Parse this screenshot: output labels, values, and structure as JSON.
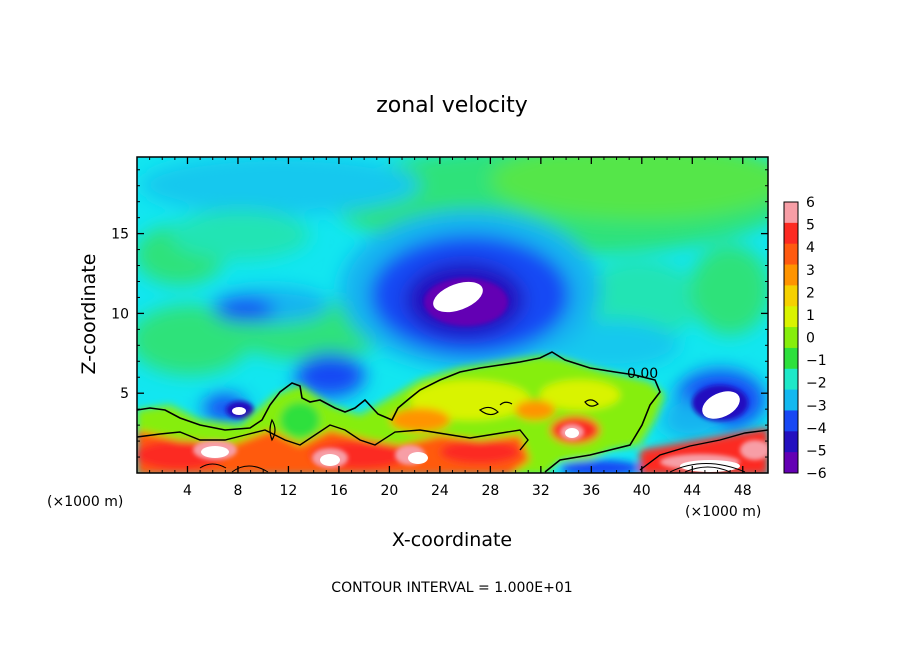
{
  "chart_data": {
    "type": "heatmap",
    "title": "zonal velocity",
    "xlabel": "X-coordinate",
    "ylabel": "Z-coordinate",
    "x_unit_label": "(×1000 m)",
    "x_unit_label_right": "(×1000 m)",
    "xlim": [
      0,
      50
    ],
    "ylim": [
      0,
      19.8
    ],
    "x_ticks": [
      4,
      8,
      12,
      16,
      20,
      24,
      28,
      32,
      36,
      40,
      44,
      48
    ],
    "y_ticks": [
      5,
      10,
      15
    ],
    "contour_label": "0.00",
    "footer": "CONTOUR INTERVAL = 1.000E+01",
    "colorbar": {
      "levels": [
        6,
        5,
        4,
        3,
        2,
        1,
        0,
        -1,
        -2,
        -3,
        -4,
        -5,
        -6
      ],
      "labels": [
        "6",
        "5",
        "4",
        "3",
        "2",
        "1",
        "0",
        "−1",
        "−2",
        "−3",
        "−4",
        "−5",
        "−6"
      ],
      "colors": [
        "#f79ea6",
        "#fc2a22",
        "#ff5a10",
        "#ff9400",
        "#f5d100",
        "#d9f300",
        "#86ee0c",
        "#2ee03c",
        "#1ee8c8",
        "#12b8f0",
        "#1848f4",
        "#2410bf",
        "#6400b4"
      ]
    },
    "features": [
      {
        "kind": "min",
        "x": 25.5,
        "z": 11.0,
        "value": -6,
        "note": "white core"
      },
      {
        "kind": "min",
        "x": 45.5,
        "z": 4.3,
        "value": -6
      },
      {
        "kind": "min",
        "x": 8.2,
        "z": 3.9,
        "value": -6
      },
      {
        "kind": "max",
        "x": 8.0,
        "z": 1.5,
        "value": 6
      },
      {
        "kind": "max",
        "x": 34.5,
        "z": 2.5,
        "value": 6
      }
    ]
  }
}
